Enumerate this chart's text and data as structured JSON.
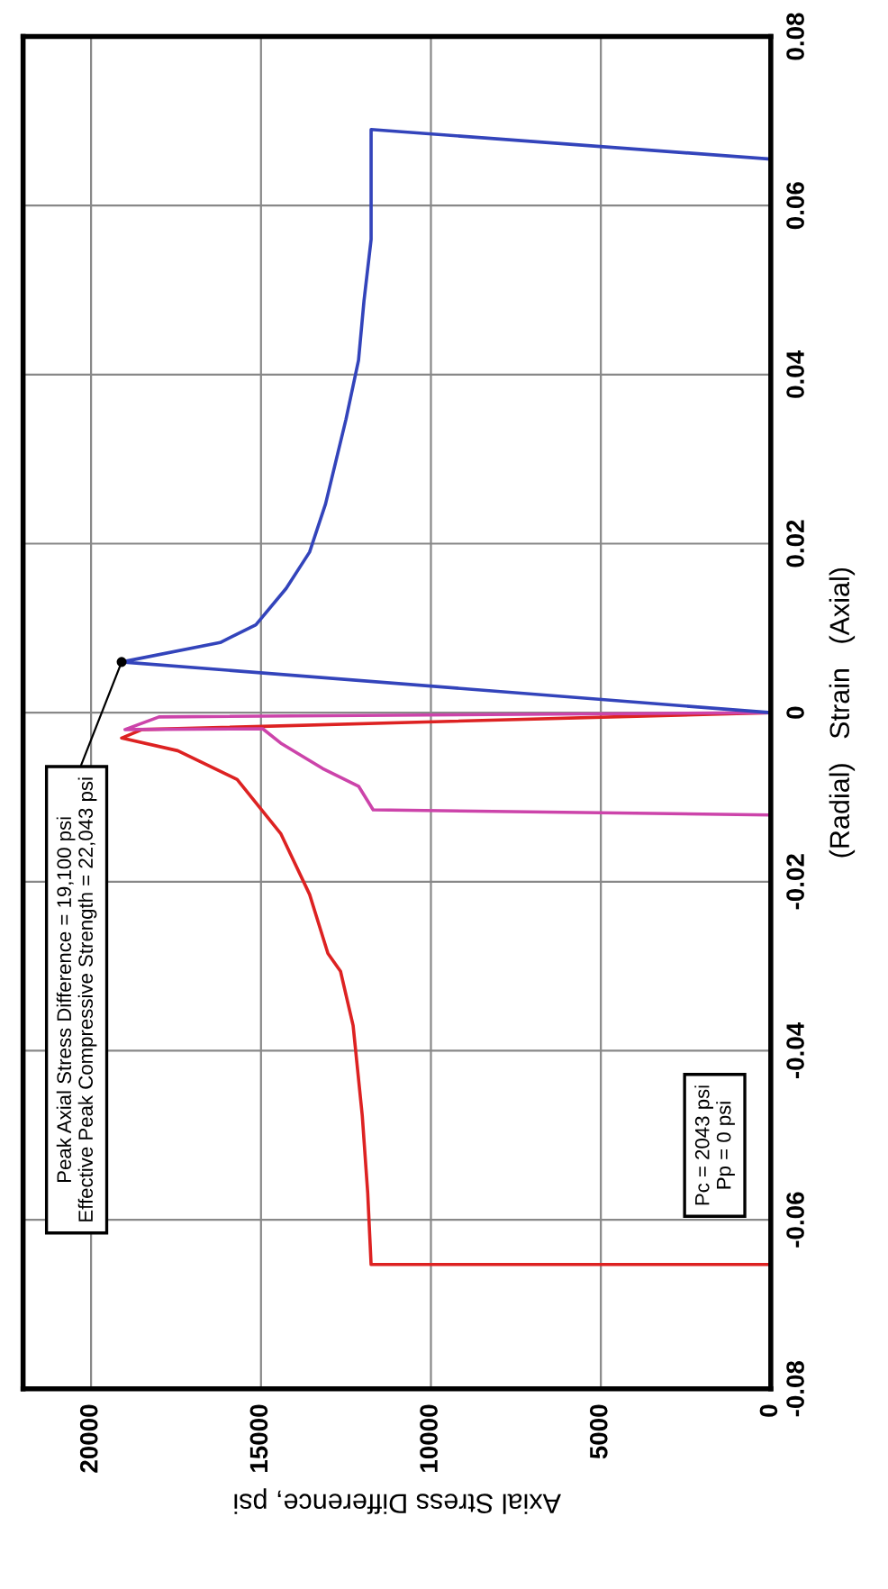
{
  "chart_data": {
    "type": "line",
    "xlabel": "Axial Stress Difference, psi",
    "ylabel": "(Radial)   Strain   (Axial)",
    "xlim": [
      22000,
      0
    ],
    "xticks": [
      20000,
      15000,
      10000,
      5000,
      0
    ],
    "ylim": [
      -0.08,
      0.08
    ],
    "yticks": [
      -0.08,
      -0.06,
      -0.04,
      -0.02,
      0,
      0.02,
      0.04,
      0.06,
      0.08
    ],
    "grid": true,
    "marker": "none",
    "line_style": "solid",
    "series": [
      {
        "color": "#dd2222",
        "x": [
          0,
          18500,
          19100,
          17450,
          15700,
          14420,
          13570,
          13030,
          12660,
          12290,
          12020,
          11860,
          11760,
          0
        ],
        "values": [
          0,
          -0.002,
          -0.003,
          -0.0045,
          -0.0079,
          -0.0143,
          -0.0215,
          -0.0285,
          -0.0306,
          -0.037,
          -0.0477,
          -0.0568,
          -0.0653,
          -0.0653
        ]
      },
      {
        "color": "#cc44aa",
        "x": [
          0,
          18000,
          19000,
          14950,
          14420,
          13190,
          12130,
          11700,
          0
        ],
        "values": [
          0,
          -0.0005,
          -0.002,
          -0.0019,
          -0.0036,
          -0.0066,
          -0.0087,
          -0.0115,
          -0.0121
        ]
      },
      {
        "color": "#3344bb",
        "x": [
          0,
          19100,
          16200,
          15150,
          14260,
          13570,
          13100,
          12500,
          12130,
          11970,
          11760,
          11760,
          0
        ],
        "values": [
          0,
          0.006,
          0.0083,
          0.0104,
          0.0147,
          0.019,
          0.0247,
          0.0347,
          0.0417,
          0.0487,
          0.056,
          0.069,
          0.0655
        ]
      }
    ],
    "annotations": [
      {
        "text": "Peak Axial Stress Difference = 19,100 psi\nEffective Peak Compressive Strength = 22,043 psi",
        "x": 19100,
        "y": 0.006
      },
      "Pc = 2043 psi\nPp = 0 psi"
    ]
  }
}
